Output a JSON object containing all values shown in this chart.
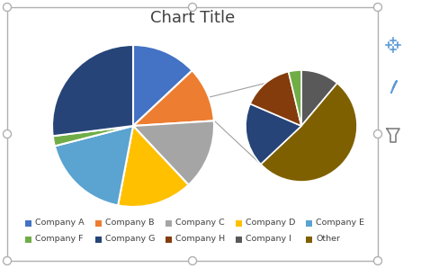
{
  "title": "Chart Title",
  "title_fontsize": 13,
  "background_color": "#ffffff",
  "border_color": "#b0b0b0",
  "main_pie": {
    "labels": [
      "Company A",
      "Company B",
      "Company C",
      "Company D",
      "Company E",
      "Company F",
      "Other"
    ],
    "values": [
      13,
      11,
      14,
      15,
      18,
      2,
      27
    ],
    "colors": [
      "#4472c4",
      "#ed7d31",
      "#a5a5a5",
      "#ffc000",
      "#5ba3d0",
      "#70ad47",
      "#264478"
    ]
  },
  "second_pie": {
    "labels": [
      "Company I",
      "Other",
      "Company G",
      "Company H",
      "Company F"
    ],
    "values": [
      6,
      28,
      10,
      8,
      2
    ],
    "colors": [
      "#595959",
      "#7f6000",
      "#264478",
      "#843c0c",
      "#70ad47"
    ]
  },
  "legend_entries": [
    {
      "label": "Company A",
      "color": "#4472c4"
    },
    {
      "label": "Company B",
      "color": "#ed7d31"
    },
    {
      "label": "Company C",
      "color": "#a5a5a5"
    },
    {
      "label": "Company D",
      "color": "#ffc000"
    },
    {
      "label": "Company E",
      "color": "#5ba3d0"
    },
    {
      "label": "Company F",
      "color": "#70ad47"
    },
    {
      "label": "Company G",
      "color": "#264478"
    },
    {
      "label": "Company H",
      "color": "#843c0c"
    },
    {
      "label": "Company I",
      "color": "#595959"
    },
    {
      "label": "Other",
      "color": "#7f6000"
    }
  ],
  "connector_color": "#a0a0a0",
  "connector_lw": 0.8,
  "figsize": [
    4.68,
    2.98
  ],
  "dpi": 100
}
